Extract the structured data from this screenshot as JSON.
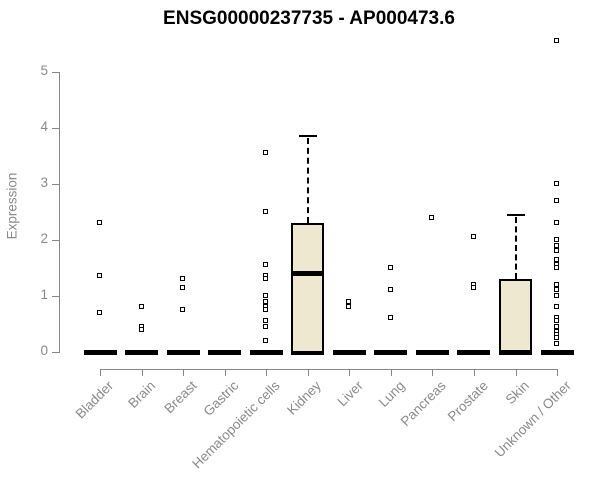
{
  "chart_data": {
    "type": "boxplot",
    "title": "ENSG00000237735 - AP000473.6",
    "ylabel": "Expression",
    "xlabel": "",
    "ylim": [
      0,
      5.6
    ],
    "yticks": [
      0,
      1,
      2,
      3,
      4,
      5
    ],
    "grid": false,
    "legend": "none",
    "categories": [
      "Bladder",
      "Brain",
      "Breast",
      "Gastric",
      "Hematopoietic cells",
      "Kidney",
      "Liver",
      "Lung",
      "Pancreas",
      "Prostate",
      "Skin",
      "Unknown / Other"
    ],
    "boxes": [
      {
        "category": "Bladder",
        "q1": 0,
        "median": 0,
        "q3": 0,
        "whisker_low": 0,
        "whisker_high": 0,
        "outliers": [
          2.3,
          1.35,
          0.7
        ]
      },
      {
        "category": "Brain",
        "q1": 0,
        "median": 0,
        "q3": 0,
        "whisker_low": 0,
        "whisker_high": 0,
        "outliers": [
          0.8,
          0.45,
          0.4
        ]
      },
      {
        "category": "Breast",
        "q1": 0,
        "median": 0,
        "q3": 0,
        "whisker_low": 0,
        "whisker_high": 0,
        "outliers": [
          1.3,
          1.15,
          0.75
        ]
      },
      {
        "category": "Gastric",
        "q1": 0,
        "median": 0,
        "q3": 0,
        "whisker_low": 0,
        "whisker_high": 0,
        "outliers": []
      },
      {
        "category": "Hematopoietic cells",
        "q1": 0,
        "median": 0,
        "q3": 0,
        "whisker_low": 0,
        "whisker_high": 0,
        "outliers": [
          3.55,
          2.5,
          1.55,
          1.35,
          1.3,
          1.0,
          0.9,
          0.8,
          0.75,
          0.55,
          0.45,
          0.2
        ]
      },
      {
        "category": "Kidney",
        "q1": 0,
        "median": 1.4,
        "q3": 2.3,
        "whisker_low": 0,
        "whisker_high": 3.85,
        "outliers": []
      },
      {
        "category": "Liver",
        "q1": 0,
        "median": 0,
        "q3": 0,
        "whisker_low": 0,
        "whisker_high": 0,
        "outliers": [
          0.9,
          0.8
        ]
      },
      {
        "category": "Lung",
        "q1": 0,
        "median": 0,
        "q3": 0,
        "whisker_low": 0,
        "whisker_high": 0,
        "outliers": [
          1.5,
          1.1,
          0.6
        ]
      },
      {
        "category": "Pancreas",
        "q1": 0,
        "median": 0,
        "q3": 0,
        "whisker_low": 0,
        "whisker_high": 0,
        "outliers": [
          2.4
        ]
      },
      {
        "category": "Prostate",
        "q1": 0,
        "median": 0,
        "q3": 0,
        "whisker_low": 0,
        "whisker_high": 0,
        "outliers": [
          2.05,
          1.2,
          1.15
        ]
      },
      {
        "category": "Skin",
        "q1": 0,
        "median": 0,
        "q3": 1.3,
        "whisker_low": 0,
        "whisker_high": 2.45,
        "outliers": []
      },
      {
        "category": "Unknown / Other",
        "q1": 0,
        "median": 0,
        "q3": 0,
        "whisker_low": 0,
        "whisker_high": 0,
        "outliers": [
          5.55,
          3.0,
          2.7,
          2.3,
          2.0,
          1.9,
          1.8,
          1.65,
          1.55,
          1.5,
          1.2,
          1.1,
          1.0,
          0.8,
          0.6,
          0.55,
          0.45,
          0.35,
          0.3,
          0.25,
          0.15
        ]
      }
    ],
    "colors": {
      "box_fill": "#EDE8CF",
      "box_border": "#000000",
      "median": "#000000",
      "whisker": "#000000",
      "outlier_fill": "#FFFFFF",
      "axis": "#878787",
      "tick_text": "#8A8A8A",
      "title_text": "#000000",
      "background": "#FFFFFF"
    }
  }
}
